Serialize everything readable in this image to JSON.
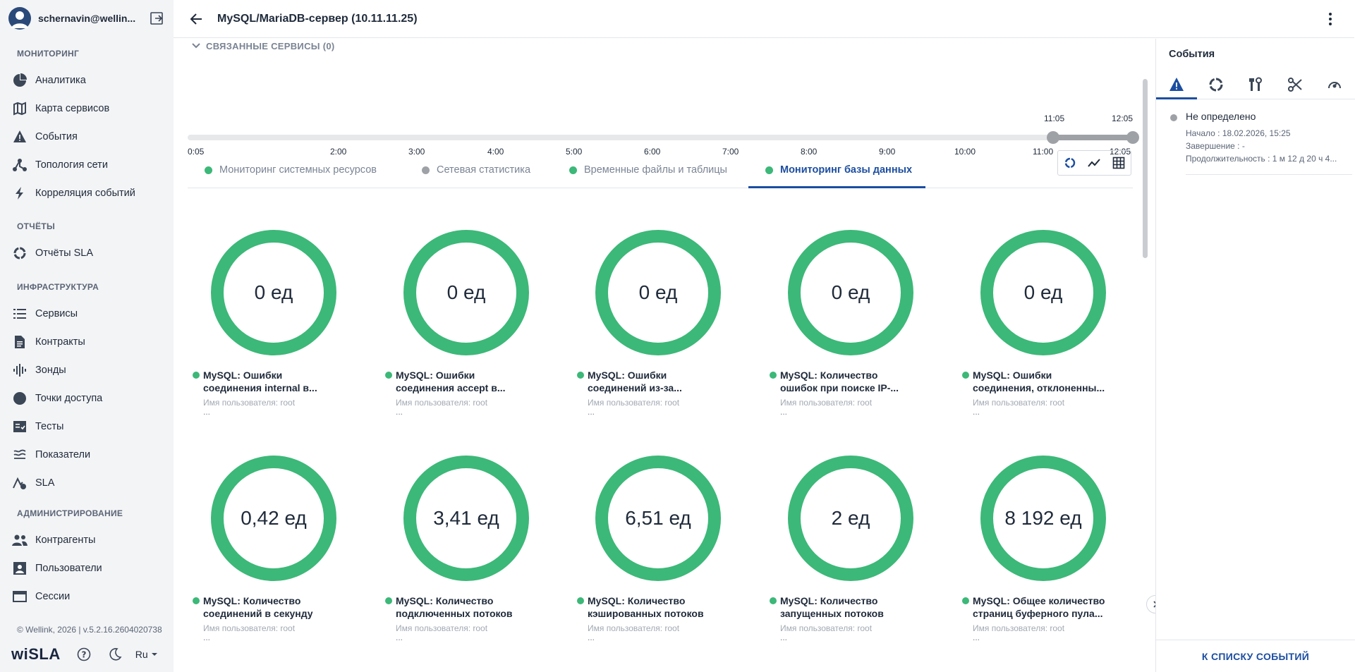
{
  "user": {
    "name": "schernavin@wellin..."
  },
  "nav": {
    "sections": [
      {
        "title": "МОНИТОРИНГ"
      },
      {
        "title": "ОТЧЁТЫ"
      },
      {
        "title": "ИНФРАСТРУКТУРА"
      },
      {
        "title": "АДМИНИСТРИРОВАНИЕ"
      }
    ],
    "items": [
      {
        "label": "Аналитика",
        "icon": "pie-chart-icon"
      },
      {
        "label": "Карта сервисов",
        "icon": "map-icon"
      },
      {
        "label": "События",
        "icon": "warning-icon"
      },
      {
        "label": "Топология сети",
        "icon": "topology-icon"
      },
      {
        "label": "Корреляция событий",
        "icon": "lightning-icon"
      },
      {
        "label": "Отчёты SLA",
        "icon": "donut-icon"
      },
      {
        "label": "Сервисы",
        "icon": "list-icon"
      },
      {
        "label": "Контракты",
        "icon": "document-icon"
      },
      {
        "label": "Зонды",
        "icon": "waveform-icon"
      },
      {
        "label": "Точки доступа",
        "icon": "circle-icon"
      },
      {
        "label": "Тесты",
        "icon": "checklist-icon"
      },
      {
        "label": "Показатели",
        "icon": "layers-icon"
      },
      {
        "label": "SLA",
        "icon": "sla-icon"
      },
      {
        "label": "Контрагенты",
        "icon": "people-icon"
      },
      {
        "label": "Пользователи",
        "icon": "user-card-icon"
      },
      {
        "label": "Сессии",
        "icon": "window-icon"
      }
    ]
  },
  "footer": {
    "copyright": "© Wellink, 2026 | v.5.2.16.2604020738",
    "logo": "wiSLA",
    "lang": "Ru"
  },
  "header": {
    "title": "MySQL/MariaDB-сервер (10.11.11.25)"
  },
  "related": {
    "label": "СВЯЗАННЫЕ СЕРВИСЫ (0)"
  },
  "timeline": {
    "ticks": [
      "0:05",
      "2:00",
      "3:00",
      "4:00",
      "5:00",
      "6:00",
      "7:00",
      "8:00",
      "9:00",
      "10:00",
      "11:00",
      "12:05"
    ],
    "range_start": "11:05",
    "range_end": "12:05"
  },
  "tabs": [
    {
      "label": "Мониторинг системных ресурсов",
      "color": "#3cb878"
    },
    {
      "label": "Сетевая статистика",
      "color": "#9ea1a6"
    },
    {
      "label": "Временные файлы и таблицы",
      "color": "#3cb878"
    },
    {
      "label": "Мониторинг базы данных",
      "color": "#3cb878",
      "active": true
    }
  ],
  "gauge_color": "#3cb878",
  "gauges": [
    {
      "value": "0 ед",
      "title1": "MySQL: Ошибки",
      "title2": "соединения internal в...",
      "sub": "Имя пользователя: root",
      "more": "..."
    },
    {
      "value": "0 ед",
      "title1": "MySQL: Ошибки",
      "title2": "соединения accept в...",
      "sub": "Имя пользователя: root",
      "more": "..."
    },
    {
      "value": "0 ед",
      "title1": "MySQL: Ошибки",
      "title2": "соединений из-за...",
      "sub": "Имя пользователя: root",
      "more": "..."
    },
    {
      "value": "0 ед",
      "title1": "MySQL: Количество",
      "title2": "ошибок при поиске IP-...",
      "sub": "Имя пользователя: root",
      "more": "..."
    },
    {
      "value": "0 ед",
      "title1": "MySQL: Ошибки",
      "title2": "соединения, отклоненны...",
      "sub": "Имя пользователя: root",
      "more": "..."
    },
    {
      "value": "0,42 ед",
      "title1": "MySQL: Количество",
      "title2": "соединений в секунду",
      "sub": "Имя пользователя: root",
      "more": "..."
    },
    {
      "value": "3,41 ед",
      "title1": "MySQL: Количество",
      "title2": "подключенных потоков",
      "sub": "Имя пользователя: root",
      "more": "..."
    },
    {
      "value": "6,51 ед",
      "title1": "MySQL: Количество",
      "title2": "кэшированных потоков",
      "sub": "Имя пользователя: root",
      "more": "..."
    },
    {
      "value": "2 ед",
      "title1": "MySQL: Количество",
      "title2": "запущенных потоков",
      "sub": "Имя пользователя: root",
      "more": "..."
    },
    {
      "value": "8 192 ед",
      "title1": "MySQL: Общее количество",
      "title2": "страниц буферного пула...",
      "sub": "Имя пользователя: root",
      "more": "..."
    }
  ],
  "events_panel": {
    "title": "События",
    "event": {
      "status": "Не определено",
      "start": "Начало : 18.02.2026, 15:25",
      "end": "Завершение : -",
      "duration": "Продолжительность : 1 м 12 д 20 ч 4..."
    },
    "footer_button": "К СПИСКУ СОБЫТИЙ"
  }
}
